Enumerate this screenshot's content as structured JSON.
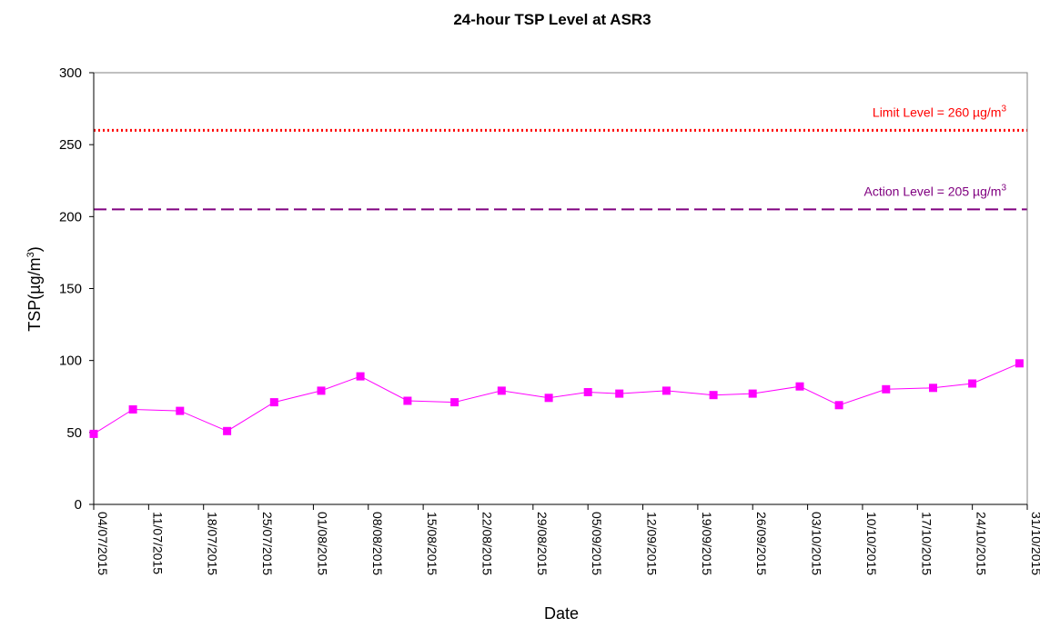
{
  "chart_data": {
    "type": "line",
    "title": "24-hour TSP Level at ASR3",
    "xlabel": "Date",
    "ylabel_main": "TSP(µg/m",
    "ylabel_sup": "3",
    "ylabel_end": ")",
    "ylim": [
      0,
      300
    ],
    "yticks": [
      0,
      50,
      100,
      150,
      200,
      250,
      300
    ],
    "xlim": [
      "2015-07-04",
      "2015-10-31"
    ],
    "xticks": [
      "04/07/2015",
      "11/07/2015",
      "18/07/2015",
      "25/07/2015",
      "01/08/2015",
      "08/08/2015",
      "15/08/2015",
      "22/08/2015",
      "29/08/2015",
      "05/09/2015",
      "12/09/2015",
      "19/09/2015",
      "26/09/2015",
      "03/10/2015",
      "10/10/2015",
      "17/10/2015",
      "24/10/2015",
      "31/10/2015"
    ],
    "grid": false,
    "series": [
      {
        "color": "#ff00ff",
        "marker": "square",
        "x": [
          "2015-07-04",
          "2015-07-09",
          "2015-07-15",
          "2015-07-21",
          "2015-07-27",
          "2015-08-02",
          "2015-08-07",
          "2015-08-13",
          "2015-08-19",
          "2015-08-25",
          "2015-08-31",
          "2015-09-05",
          "2015-09-09",
          "2015-09-15",
          "2015-09-21",
          "2015-09-26",
          "2015-10-02",
          "2015-10-07",
          "2015-10-13",
          "2015-10-19",
          "2015-10-24",
          "2015-10-30"
        ],
        "values": [
          49,
          66,
          65,
          51,
          71,
          79,
          89,
          72,
          71,
          79,
          74,
          78,
          77,
          79,
          76,
          77,
          82,
          69,
          80,
          81,
          84,
          98
        ]
      }
    ],
    "reference_lines": [
      {
        "label_main": "Limit Level = 260 µg/m",
        "label_sup": "3",
        "value": 260,
        "color": "#ff0000",
        "style": "dotted"
      },
      {
        "label_main": "Action Level = 205 µg/m",
        "label_sup": "3",
        "value": 205,
        "color": "#800080",
        "style": "dashed"
      }
    ]
  }
}
